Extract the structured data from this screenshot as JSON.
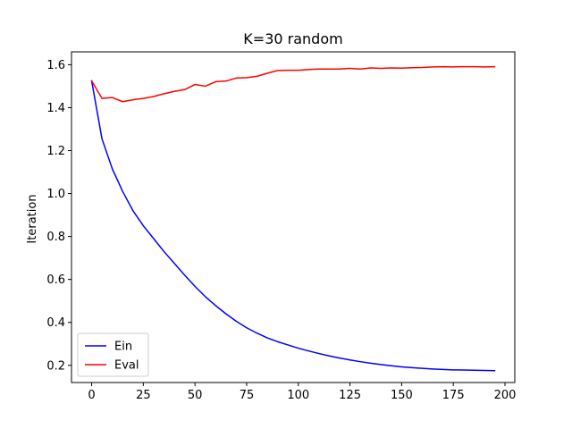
{
  "chart_data": {
    "type": "line",
    "title": "K=30 random",
    "xlabel": "",
    "ylabel": "Iteration",
    "xlim": [
      -9.75,
      204.75
    ],
    "ylim": [
      0.12,
      1.66
    ],
    "xticks": [
      0,
      25,
      50,
      75,
      100,
      125,
      150,
      175,
      200
    ],
    "yticks": [
      0.2,
      0.4,
      0.6,
      0.8,
      1.0,
      1.2,
      1.4,
      1.6
    ],
    "ytick_labels": [
      "0.2",
      "0.4",
      "0.6",
      "0.8",
      "1.0",
      "1.2",
      "1.4",
      "1.6"
    ],
    "grid": false,
    "legend_position": "lower-left",
    "x": [
      0,
      5,
      10,
      15,
      20,
      25,
      30,
      35,
      40,
      45,
      50,
      55,
      60,
      65,
      70,
      75,
      80,
      85,
      90,
      95,
      100,
      105,
      110,
      115,
      120,
      125,
      130,
      135,
      140,
      145,
      150,
      155,
      160,
      165,
      170,
      175,
      180,
      185,
      190,
      195
    ],
    "series": [
      {
        "name": "Ein",
        "color": "#0000ff",
        "values": [
          1.525,
          1.255,
          1.115,
          1.01,
          0.92,
          0.85,
          0.79,
          0.73,
          0.675,
          0.62,
          0.568,
          0.52,
          0.478,
          0.44,
          0.405,
          0.375,
          0.35,
          0.328,
          0.31,
          0.295,
          0.28,
          0.267,
          0.255,
          0.244,
          0.234,
          0.225,
          0.217,
          0.21,
          0.204,
          0.198,
          0.193,
          0.189,
          0.186,
          0.183,
          0.181,
          0.179,
          0.178,
          0.177,
          0.176,
          0.175
        ]
      },
      {
        "name": "Eval",
        "color": "#ff0000",
        "values": [
          1.525,
          1.443,
          1.447,
          1.428,
          1.437,
          1.443,
          1.452,
          1.465,
          1.476,
          1.484,
          1.508,
          1.5,
          1.521,
          1.524,
          1.538,
          1.54,
          1.546,
          1.56,
          1.573,
          1.574,
          1.574,
          1.578,
          1.58,
          1.58,
          1.58,
          1.583,
          1.58,
          1.585,
          1.583,
          1.585,
          1.584,
          1.586,
          1.587,
          1.59,
          1.591,
          1.59,
          1.591,
          1.591,
          1.59,
          1.591
        ]
      }
    ]
  }
}
